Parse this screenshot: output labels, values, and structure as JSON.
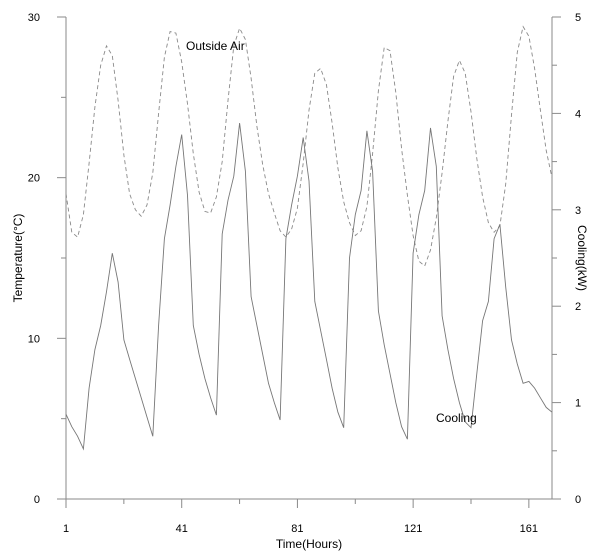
{
  "chart_data": {
    "type": "line",
    "title": "",
    "xlabel": "Time(Hours)",
    "ylabel_left": "Temperature(°C)",
    "ylabel_right": "Cooling(kW)",
    "xlim": [
      1,
      169
    ],
    "ylim_left": [
      0,
      30
    ],
    "ylim_right": [
      0,
      5
    ],
    "x_ticks": [
      1,
      41,
      81,
      121,
      161
    ],
    "y_ticks_left": [
      0,
      10,
      20,
      30
    ],
    "y_ticks_right": [
      0,
      1,
      2,
      3,
      4,
      5
    ],
    "grid": false,
    "annotations": [
      {
        "text": "Outside Air",
        "series": "outside_air"
      },
      {
        "text": "Cooling",
        "series": "cooling"
      }
    ],
    "series": [
      {
        "id": "outside_air",
        "axis": "left",
        "style": "dashed",
        "x": [
          1,
          3,
          5,
          7,
          9,
          11,
          13,
          15,
          17,
          19,
          21,
          23,
          25,
          27,
          29,
          31,
          33,
          35,
          37,
          39,
          41,
          43,
          45,
          47,
          49,
          51,
          53,
          55,
          57,
          59,
          61,
          63,
          65,
          67,
          69,
          71,
          73,
          75,
          77,
          79,
          81,
          83,
          85,
          87,
          89,
          91,
          93,
          95,
          97,
          99,
          101,
          103,
          105,
          107,
          109,
          111,
          113,
          115,
          117,
          119,
          121,
          123,
          125,
          127,
          129,
          131,
          133,
          135,
          137,
          139,
          141,
          143,
          145,
          147,
          149,
          151,
          153,
          155,
          157,
          159,
          161,
          163,
          165,
          167,
          169
        ],
        "y": [
          19.0,
          16.6,
          16.3,
          17.7,
          20.9,
          24.4,
          27.0,
          28.2,
          27.6,
          24.8,
          21.4,
          19.0,
          18.0,
          17.6,
          18.3,
          20.3,
          24.0,
          27.5,
          29.1,
          29.0,
          27.2,
          24.6,
          21.5,
          19.1,
          17.9,
          17.8,
          18.8,
          21.0,
          24.8,
          28.2,
          29.3,
          28.6,
          26.2,
          23.2,
          20.8,
          19.0,
          17.8,
          16.7,
          16.3,
          16.8,
          18.1,
          20.9,
          24.2,
          26.5,
          26.8,
          25.8,
          23.4,
          20.6,
          18.5,
          17.2,
          16.4,
          16.7,
          18.2,
          21.5,
          25.4,
          28.1,
          27.9,
          25.3,
          21.8,
          18.9,
          16.4,
          14.8,
          14.5,
          15.5,
          17.5,
          20.3,
          23.5,
          26.3,
          27.3,
          26.5,
          24.1,
          21.2,
          18.8,
          17.2,
          16.6,
          17.0,
          19.6,
          23.9,
          27.8,
          29.4,
          28.8,
          26.8,
          24.2,
          21.7,
          20.0
        ]
      },
      {
        "id": "cooling",
        "axis": "right",
        "style": "solid",
        "x": [
          1,
          3,
          5,
          7,
          9,
          11,
          13,
          15,
          17,
          19,
          21,
          23,
          25,
          27,
          29,
          31,
          33,
          35,
          37,
          39,
          41,
          43,
          45,
          47,
          49,
          51,
          53,
          55,
          57,
          59,
          61,
          63,
          65,
          67,
          69,
          71,
          73,
          75,
          77,
          79,
          81,
          83,
          85,
          87,
          89,
          91,
          93,
          95,
          97,
          99,
          101,
          103,
          105,
          107,
          109,
          111,
          113,
          115,
          117,
          119,
          121,
          123,
          125,
          127,
          129,
          131,
          133,
          135,
          137,
          139,
          141,
          143,
          145,
          147,
          149,
          151,
          153,
          155,
          157,
          159,
          161,
          163,
          165,
          167,
          169
        ],
        "y": [
          0.88,
          0.75,
          0.65,
          0.52,
          1.15,
          1.55,
          1.8,
          2.15,
          2.55,
          2.25,
          1.65,
          1.45,
          1.25,
          1.05,
          0.85,
          0.65,
          1.8,
          2.7,
          3.05,
          3.45,
          3.78,
          3.15,
          1.8,
          1.5,
          1.25,
          1.05,
          0.87,
          2.75,
          3.1,
          3.35,
          3.9,
          3.4,
          2.1,
          1.8,
          1.5,
          1.2,
          1.0,
          0.82,
          2.7,
          3.05,
          3.35,
          3.75,
          3.3,
          2.05,
          1.75,
          1.45,
          1.15,
          0.9,
          0.74,
          2.5,
          2.95,
          3.2,
          3.82,
          3.4,
          1.95,
          1.6,
          1.3,
          1.0,
          0.75,
          0.62,
          2.55,
          2.95,
          3.2,
          3.85,
          3.45,
          1.9,
          1.55,
          1.25,
          1.0,
          0.8,
          0.74,
          1.3,
          1.85,
          2.05,
          2.7,
          2.85,
          2.2,
          1.65,
          1.4,
          1.2,
          1.22,
          1.15,
          1.05,
          0.95,
          0.9
        ]
      }
    ]
  }
}
